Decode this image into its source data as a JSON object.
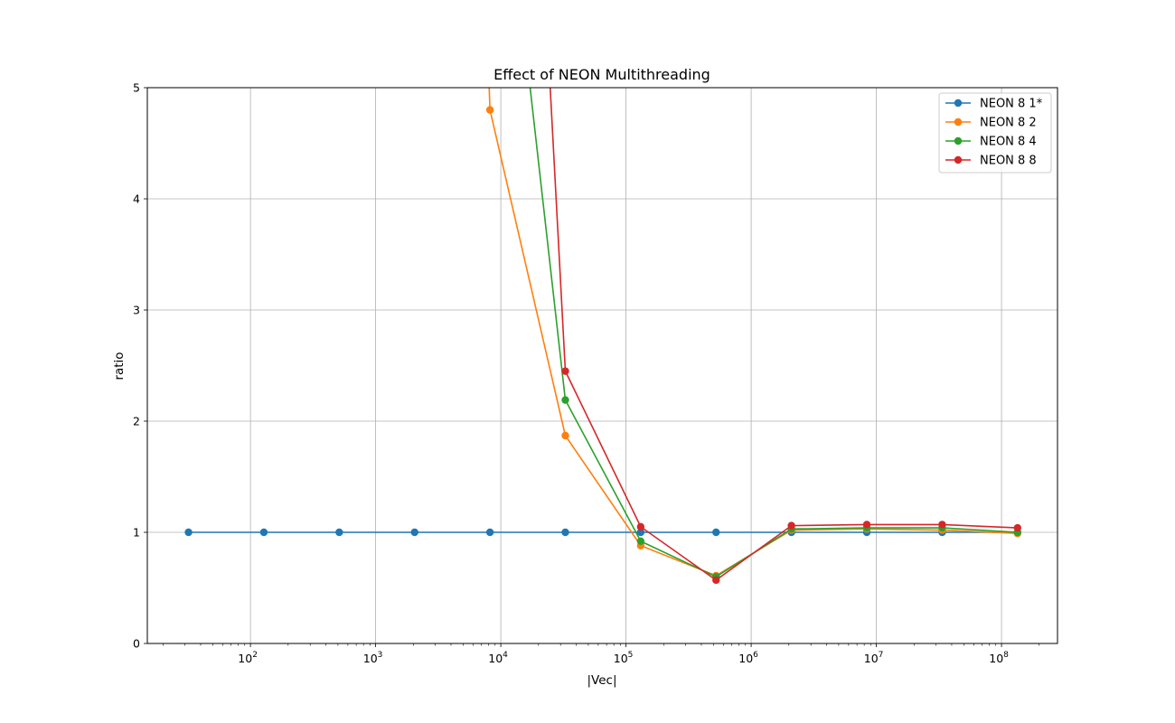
{
  "chart_data": {
    "type": "line",
    "title": "Effect of NEON Multithreading",
    "xlabel": "|Vec|",
    "ylabel": "ratio",
    "xscale": "log",
    "xlim": [
      15,
      280000000
    ],
    "ylim": [
      0,
      5
    ],
    "x_ticks": [
      {
        "value": 100,
        "base": "10",
        "exp": "2"
      },
      {
        "value": 1000,
        "base": "10",
        "exp": "3"
      },
      {
        "value": 10000,
        "base": "10",
        "exp": "4"
      },
      {
        "value": 100000,
        "base": "10",
        "exp": "5"
      },
      {
        "value": 1000000,
        "base": "10",
        "exp": "6"
      },
      {
        "value": 10000000,
        "base": "10",
        "exp": "7"
      },
      {
        "value": 100000000,
        "base": "10",
        "exp": "8"
      }
    ],
    "y_ticks": [
      "0",
      "1",
      "2",
      "3",
      "4",
      "5"
    ],
    "grid": true,
    "legend_position": "top-right",
    "x": [
      32,
      128,
      512,
      2048,
      8192,
      32768,
      131072,
      524288,
      2097152,
      8388608,
      33554432,
      134217728
    ],
    "series": [
      {
        "name": "NEON 8 1*",
        "color": "#1f77b4",
        "values": [
          1,
          1,
          1,
          1,
          1,
          1,
          1,
          1,
          1,
          1,
          1,
          1
        ]
      },
      {
        "name": "NEON 8 2",
        "color": "#ff7f0e",
        "values": [
          null,
          null,
          null,
          null,
          4.8,
          1.87,
          0.88,
          0.61,
          1.02,
          1.03,
          1.02,
          0.99
        ]
      },
      {
        "name": "NEON 8 4",
        "color": "#2ca02c",
        "values": [
          null,
          null,
          null,
          null,
          null,
          2.19,
          0.92,
          0.6,
          1.03,
          1.04,
          1.04,
          1.0
        ]
      },
      {
        "name": "NEON 8 8",
        "color": "#d62728",
        "values": [
          null,
          null,
          null,
          null,
          null,
          2.45,
          1.05,
          0.57,
          1.06,
          1.07,
          1.07,
          1.04
        ]
      }
    ],
    "offscale_segments": [
      {
        "series": "NEON 8 2",
        "from_x": 8192,
        "from_y": 4.8,
        "to_x": 7900,
        "to_y": 5.3
      },
      {
        "series": "NEON 8 4",
        "from_x": 32768,
        "from_y": 2.19,
        "to_x": 16000,
        "to_y": 5.3
      },
      {
        "series": "NEON 8 8",
        "from_x": 32768,
        "from_y": 2.45,
        "to_x": 24000,
        "to_y": 5.3
      }
    ]
  }
}
